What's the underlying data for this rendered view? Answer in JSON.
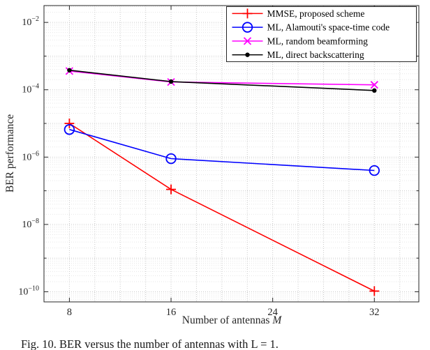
{
  "figure": {
    "caption": "Fig. 10. BER versus the number of antennas with L = 1."
  },
  "chart_data": {
    "type": "line",
    "title": "",
    "xlabel": "Number of antennas M",
    "xlabel_prefix": "Number of antennas ",
    "xlabel_var": "M",
    "ylabel": "BER performance",
    "x_axis_scale": "linear",
    "y_axis_scale": "log",
    "x": [
      8,
      16,
      32
    ],
    "series": [
      {
        "name": "MMSE, proposed scheme",
        "color": "#ff0000",
        "marker": "plus",
        "values": [
          1e-05,
          1.1e-07,
          1.05e-10
        ]
      },
      {
        "name": "ML, Alamouti's space-time code",
        "color": "#0000ff",
        "marker": "circle",
        "values": [
          6.6e-06,
          9e-07,
          4e-07
        ]
      },
      {
        "name": "ML, random beamforming",
        "color": "#ff00ff",
        "marker": "x",
        "values": [
          0.00036,
          0.00017,
          0.00014
        ]
      },
      {
        "name": "ML, direct backscattering",
        "color": "#000000",
        "marker": "dot",
        "values": [
          0.00038,
          0.000175,
          9.5e-05
        ]
      }
    ],
    "xlim": [
      6,
      35.5
    ],
    "ylog_lim": [
      -10.3,
      -1.5
    ],
    "xticks": [
      8,
      16,
      24,
      32
    ],
    "ytick_exponents": [
      -2,
      -4,
      -6,
      -8,
      -10
    ],
    "ytick_labels": [
      "10⁻²",
      "10⁻⁴",
      "10⁻⁶",
      "10⁻⁸",
      "10⁻¹⁰"
    ],
    "grid": "dotted",
    "legend_position": "top-right"
  }
}
